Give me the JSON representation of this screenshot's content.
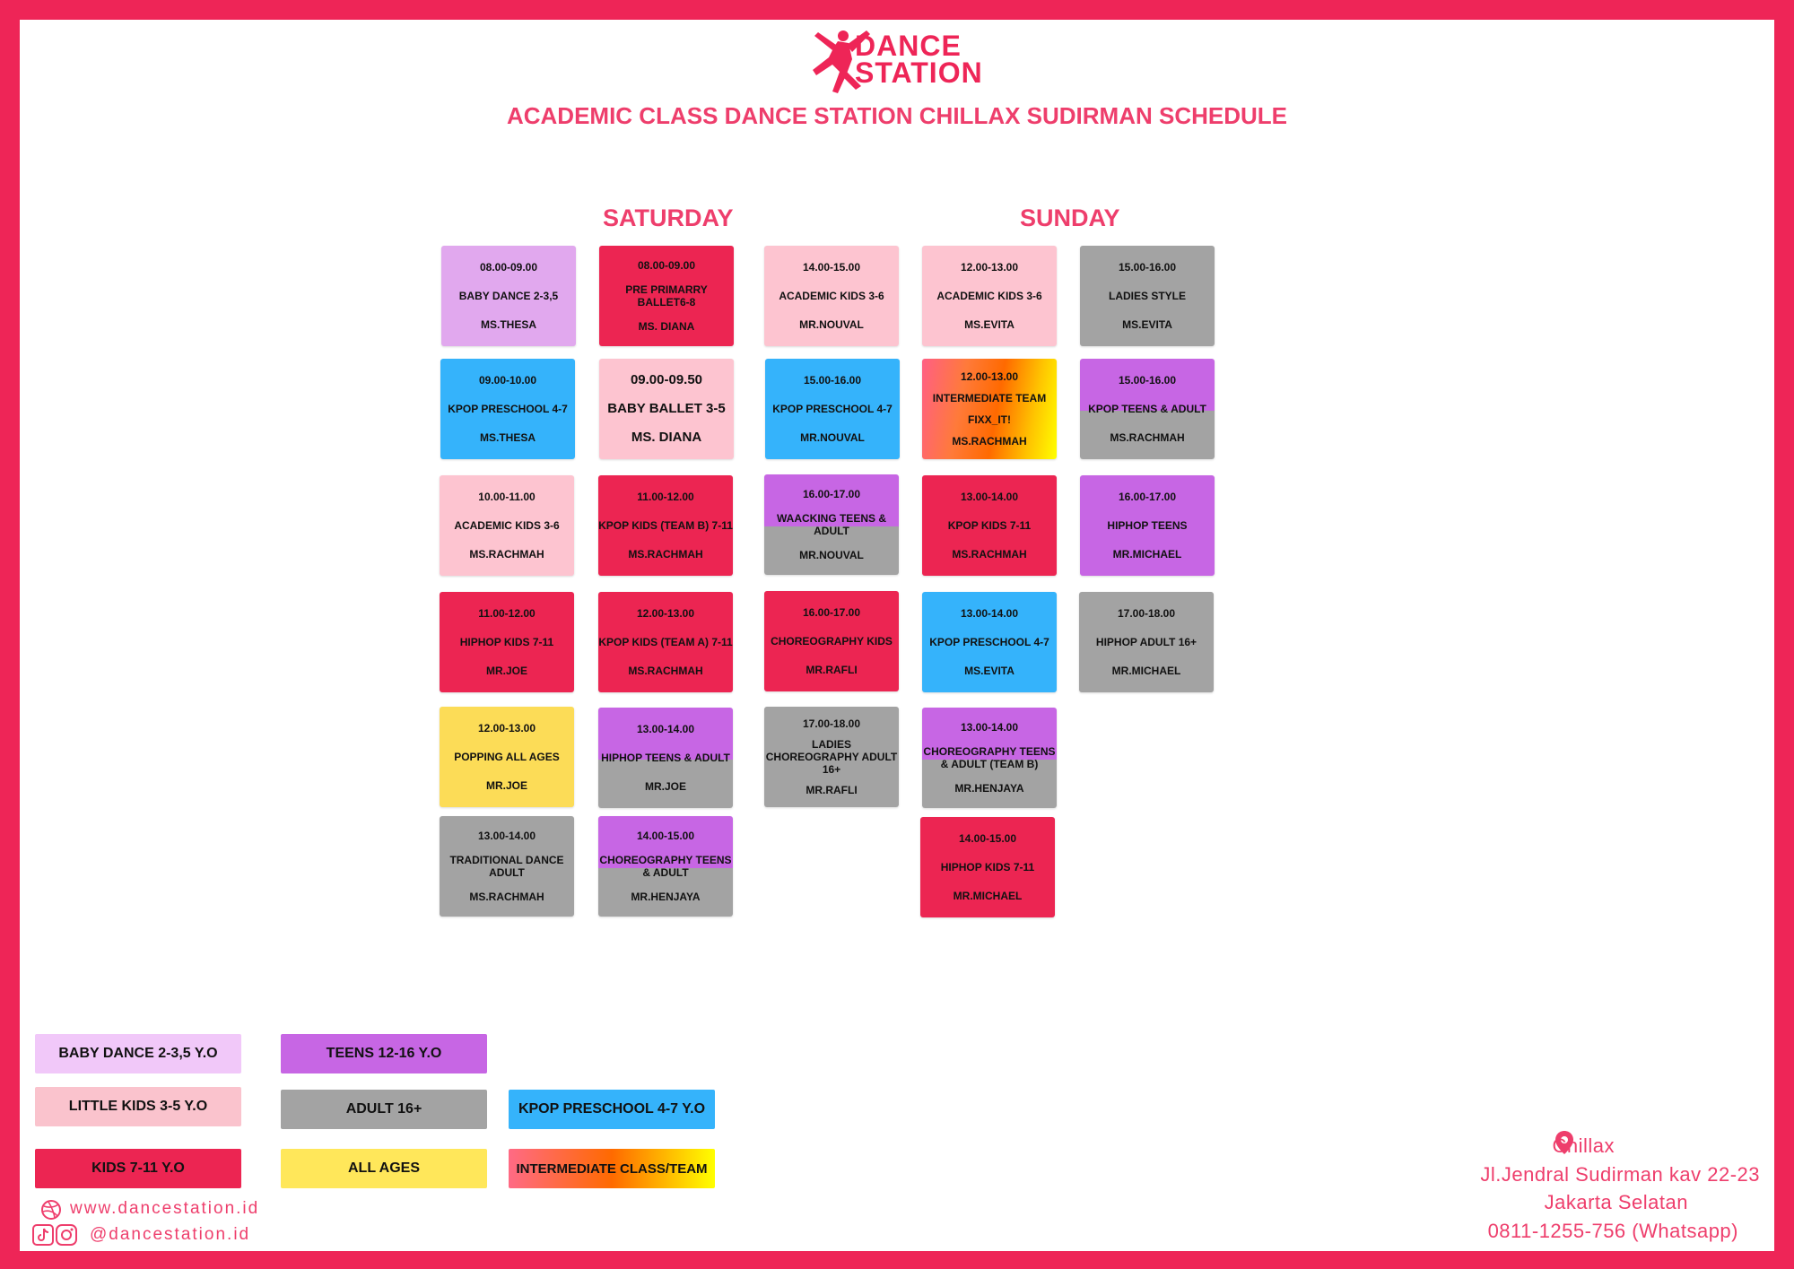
{
  "brand": {
    "logo_line1": "DANCE",
    "logo_line2": "STATION"
  },
  "title": "ACADEMIC CLASS DANCE STATION CHILLAX SUDIRMAN SCHEDULE",
  "days": {
    "saturday": "SATURDAY",
    "sunday": "SUNDAY"
  },
  "colors": {
    "frame": "#ee2557",
    "accent": "#ee3e6c"
  },
  "classes": [
    {
      "time": "08.00-09.00",
      "name": "BABY DANCE 2-3,5",
      "teacher": "MS.THESA"
    },
    {
      "time": "09.00-10.00",
      "name": "KPOP PRESCHOOL 4-7",
      "teacher": "MS.THESA"
    },
    {
      "time": "10.00-11.00",
      "name": "ACADEMIC KIDS 3-6",
      "teacher": "MS.RACHMAH"
    },
    {
      "time": "11.00-12.00",
      "name": "HIPHOP KIDS 7-11",
      "teacher": "MR.JOE"
    },
    {
      "time": "12.00-13.00",
      "name": "POPPING ALL AGES",
      "teacher": "MR.JOE"
    },
    {
      "time": "13.00-14.00",
      "name": "TRADITIONAL DANCE ADULT",
      "teacher": "MS.RACHMAH"
    },
    {
      "time": "08.00-09.00",
      "name": "PRE PRIMARRY BALLET6-8",
      "teacher": "MS. DIANA"
    },
    {
      "time": "09.00-09.50",
      "name": "BABY BALLET 3-5",
      "teacher": "MS. DIANA"
    },
    {
      "time": "11.00-12.00",
      "name": "KPOP KIDS (TEAM B) 7-11",
      "teacher": "MS.RACHMAH"
    },
    {
      "time": "12.00-13.00",
      "name": "KPOP KIDS (TEAM A) 7-11",
      "teacher": "MS.RACHMAH"
    },
    {
      "time": "13.00-14.00",
      "name": "HIPHOP TEENS & ADULT",
      "teacher": "MR.JOE"
    },
    {
      "time": "14.00-15.00",
      "name": "CHOREOGRAPHY TEENS & ADULT",
      "teacher": "MR.HENJAYA"
    },
    {
      "time": "14.00-15.00",
      "name": "ACADEMIC KIDS 3-6",
      "teacher": "MR.NOUVAL"
    },
    {
      "time": "15.00-16.00",
      "name": "KPOP PRESCHOOL 4-7",
      "teacher": "MR.NOUVAL"
    },
    {
      "time": "16.00-17.00",
      "name": "WAACKING TEENS & ADULT",
      "teacher": "MR.NOUVAL"
    },
    {
      "time": "16.00-17.00",
      "name": "CHOREOGRAPHY KIDS",
      "teacher": "MR.RAFLI"
    },
    {
      "time": "17.00-18.00",
      "name": "LADIES CHOREOGRAPHY ADULT 16+",
      "teacher": "MR.RAFLI"
    },
    {
      "time": "12.00-13.00",
      "name": "ACADEMIC KIDS 3-6",
      "teacher": "MS.EVITA"
    },
    {
      "time": "12.00-13.00",
      "name": "INTERMEDIATE TEAM",
      "extra": "FIXX_IT!",
      "teacher": "MS.RACHMAH"
    },
    {
      "time": "13.00-14.00",
      "name": "KPOP KIDS 7-11",
      "teacher": "MS.RACHMAH"
    },
    {
      "time": "13.00-14.00",
      "name": "KPOP PRESCHOOL 4-7",
      "teacher": "MS.EVITA"
    },
    {
      "time": "13.00-14.00",
      "name": "CHOREOGRAPHY TEENS & ADULT (TEAM B)",
      "teacher": "MR.HENJAYA"
    },
    {
      "time": "14.00-15.00",
      "name": "HIPHOP KIDS 7-11",
      "teacher": "MR.MICHAEL"
    },
    {
      "time": "15.00-16.00",
      "name": "LADIES STYLE",
      "teacher": "MS.EVITA"
    },
    {
      "time": "15.00-16.00",
      "name": "KPOP TEENS & ADULT",
      "teacher": "MS.RACHMAH"
    },
    {
      "time": "16.00-17.00",
      "name": "HIPHOP TEENS",
      "teacher": "MR.MICHAEL"
    },
    {
      "time": "17.00-18.00",
      "name": "HIPHOP ADULT 16+",
      "teacher": "MR.MICHAEL"
    }
  ],
  "legend": {
    "baby": "BABY DANCE 2-3,5 Y.O",
    "little": "LITTLE KIDS 3-5 Y.O",
    "kids": "KIDS 7-11 Y.O",
    "teens": "TEENS 12-16 Y.O",
    "adult": "ADULT 16+",
    "all": "ALL AGES",
    "kpop": "KPOP PRESCHOOL 4-7 Y.O",
    "inter": "INTERMEDIATE CLASS/TEAM"
  },
  "footer": {
    "website": "www.dancestation.id",
    "social": "@dancestation.id",
    "location": "Chillax",
    "address1": "Jl.Jendral Sudirman kav 22-23",
    "address2": "Jakarta Selatan",
    "phone": "0811-1255-756 (Whatsapp)"
  }
}
